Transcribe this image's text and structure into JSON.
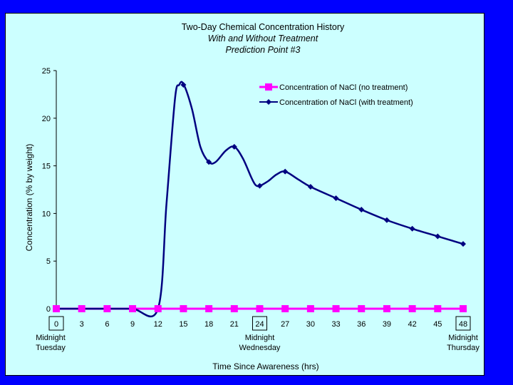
{
  "chart_data": {
    "type": "line",
    "title": [
      "Two-Day Chemical Concentration History",
      "With and Without Treatment",
      "Prediction Point #3"
    ],
    "xlabel": "Time Since Awareness (hrs)",
    "ylabel": "Concentration (% by weight)",
    "xlim": [
      0,
      48
    ],
    "ylim": [
      0,
      25
    ],
    "x_ticks": [
      0,
      3,
      6,
      9,
      12,
      15,
      18,
      21,
      24,
      27,
      30,
      33,
      36,
      39,
      42,
      45,
      48
    ],
    "y_ticks": [
      0,
      5,
      10,
      15,
      20,
      25
    ],
    "boxed_x_ticks": [
      0,
      24,
      48
    ],
    "x_tick_annotations": [
      {
        "x": 0,
        "lines": [
          "Midnight",
          "Tuesday"
        ]
      },
      {
        "x": 24,
        "lines": [
          "Midnight",
          "Wednesday"
        ]
      },
      {
        "x": 48,
        "lines": [
          "Midnight",
          "Thursday"
        ]
      }
    ],
    "legend_placement": "top-right",
    "grid": false,
    "series": [
      {
        "name": "Concentration of NaCl (no treatment)",
        "color": "#ff00ff",
        "marker": "square",
        "points": [
          [
            0,
            0
          ],
          [
            3,
            0
          ],
          [
            6,
            0
          ],
          [
            9,
            0
          ],
          [
            12,
            0
          ],
          [
            15,
            0
          ],
          [
            18,
            0
          ],
          [
            21,
            0
          ],
          [
            24,
            0
          ],
          [
            27,
            0
          ],
          [
            30,
            0
          ],
          [
            33,
            0
          ],
          [
            36,
            0
          ],
          [
            39,
            0
          ],
          [
            42,
            0
          ],
          [
            45,
            0
          ],
          [
            48,
            0
          ]
        ]
      },
      {
        "name": "Concentration of NaCl (with treatment)",
        "color": "#000080",
        "marker": "diamond",
        "points": [
          [
            0,
            0
          ],
          [
            3,
            0
          ],
          [
            6,
            0
          ],
          [
            9,
            0
          ],
          [
            12,
            0
          ],
          [
            15,
            23.5
          ],
          [
            18,
            15.4
          ],
          [
            21,
            17
          ],
          [
            24,
            12.9
          ],
          [
            27,
            14.4
          ],
          [
            30,
            12.8
          ],
          [
            33,
            11.6
          ],
          [
            36,
            10.4
          ],
          [
            39,
            9.3
          ],
          [
            42,
            8.4
          ],
          [
            45,
            7.6
          ],
          [
            48,
            6.8
          ]
        ]
      }
    ],
    "smooth_control": {
      "series_index": 1,
      "points": [
        [
          0,
          0
        ],
        [
          3,
          0
        ],
        [
          6,
          0
        ],
        [
          9,
          0
        ],
        [
          12,
          0
        ],
        [
          13,
          11
        ],
        [
          14,
          22
        ],
        [
          14.5,
          23.5
        ],
        [
          15,
          23.6
        ],
        [
          16,
          21
        ],
        [
          17,
          17
        ],
        [
          18,
          15.4
        ],
        [
          18.8,
          15.4
        ],
        [
          20,
          16.6
        ],
        [
          21,
          17
        ],
        [
          22,
          15.8
        ],
        [
          23,
          13.8
        ],
        [
          23.5,
          13
        ],
        [
          24,
          12.9
        ],
        [
          25,
          13.4
        ],
        [
          26,
          14.1
        ],
        [
          27,
          14.4
        ],
        [
          28.5,
          13.6
        ],
        [
          30,
          12.8
        ],
        [
          33,
          11.6
        ],
        [
          36,
          10.4
        ],
        [
          39,
          9.3
        ],
        [
          42,
          8.4
        ],
        [
          45,
          7.6
        ],
        [
          48,
          6.8
        ]
      ]
    }
  }
}
